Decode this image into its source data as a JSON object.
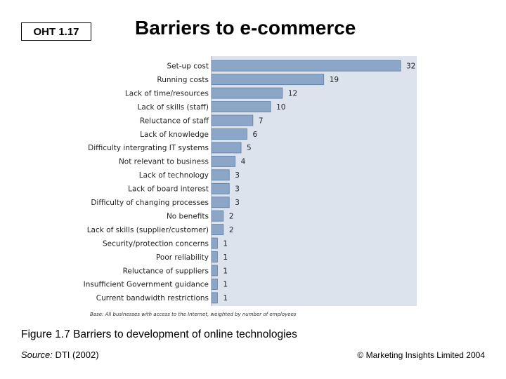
{
  "header": {
    "badge": "OHT 1.17",
    "title": "Barriers to e-commerce"
  },
  "chart_data": {
    "type": "bar",
    "orientation": "horizontal",
    "categories": [
      "Set-up cost",
      "Running costs",
      "Lack of time/resources",
      "Lack of skills (staff)",
      "Reluctance of staff",
      "Lack of knowledge",
      "Difficulty intergrating IT systems",
      "Not relevant to business",
      "Lack of technology",
      "Lack of board interest",
      "Difficulty of changing processes",
      "No benefits",
      "Lack of skills (supplier/customer)",
      "Security/protection concerns",
      "Poor reliability",
      "Reluctance of suppliers",
      "Insufficient Government guidance",
      "Current bandwidth restrictions"
    ],
    "values": [
      32,
      19,
      12,
      10,
      7,
      6,
      5,
      4,
      3,
      3,
      3,
      2,
      2,
      1,
      1,
      1,
      1,
      1
    ],
    "xlim": [
      0,
      32
    ],
    "note": "Base: All businesses with access to the Internet, weighted by number of employees",
    "bar_color": "#8ba6c6",
    "bar_stroke": "#5b7ea6",
    "panel_color": "#dde3ec"
  },
  "caption": "Figure 1.7  Barriers to development of online technologies",
  "source": {
    "label": "Source:",
    "text": "DTI (2002)"
  },
  "copyright": "© Marketing Insights Limited 2004"
}
